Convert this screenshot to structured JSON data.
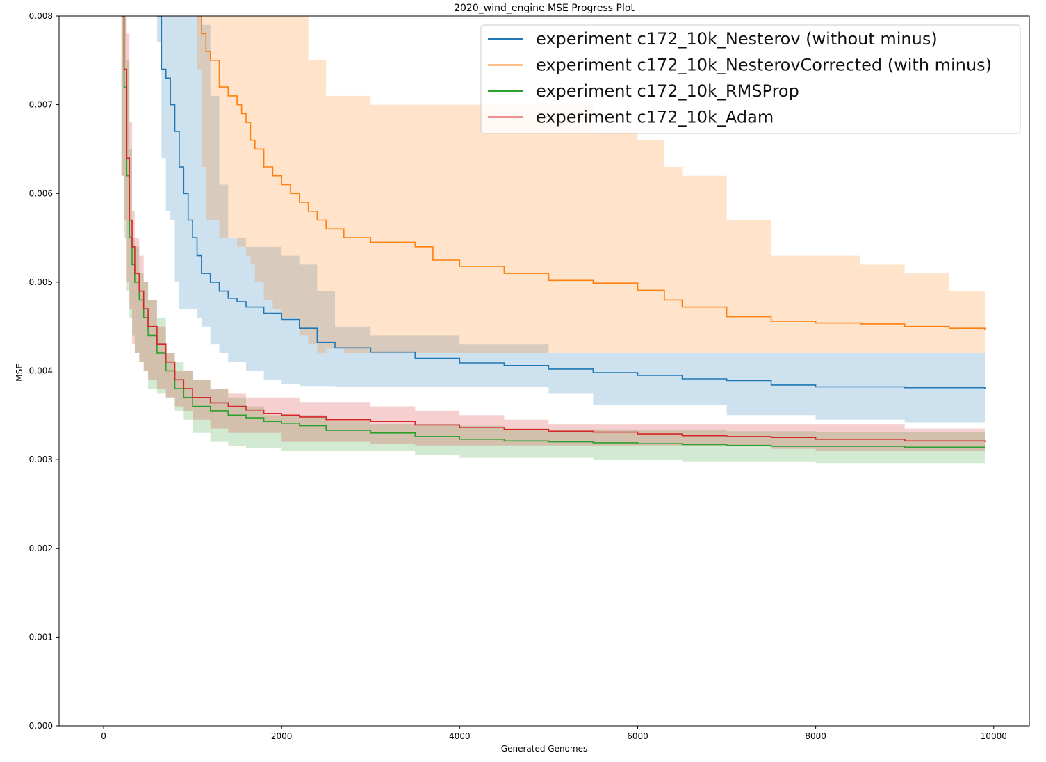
{
  "chart_data": {
    "type": "line",
    "title": "2020_wind_engine MSE Progress Plot",
    "xlabel": "Generated Genomes",
    "ylabel": "MSE",
    "xlim": [
      -500,
      10400
    ],
    "ylim": [
      0,
      0.008
    ],
    "xticks": [
      0,
      2000,
      4000,
      6000,
      8000,
      10000
    ],
    "xtick_labels": [
      "0",
      "2000",
      "4000",
      "6000",
      "8000",
      "10000"
    ],
    "yticks": [
      0,
      0.001,
      0.002,
      0.003,
      0.004,
      0.005,
      0.006,
      0.007,
      0.008
    ],
    "ytick_labels": [
      "0.000",
      "0.001",
      "0.002",
      "0.003",
      "0.004",
      "0.005",
      "0.006",
      "0.007",
      "0.008"
    ],
    "grid": false,
    "legend_position": "top-right",
    "series": [
      {
        "name": "experiment c172_10k_Nesterov (without minus)",
        "color": "#1f77b4",
        "x": [
          600,
          650,
          700,
          750,
          800,
          850,
          900,
          950,
          1000,
          1050,
          1100,
          1200,
          1300,
          1400,
          1500,
          1600,
          1800,
          2000,
          2200,
          2400,
          2600,
          3000,
          3500,
          4000,
          4500,
          5000,
          5500,
          6000,
          6500,
          7000,
          7500,
          8000,
          9000,
          9900
        ],
        "y": [
          0.008,
          0.0074,
          0.0073,
          0.007,
          0.0067,
          0.0063,
          0.006,
          0.0057,
          0.0055,
          0.0053,
          0.0051,
          0.005,
          0.0049,
          0.00482,
          0.00478,
          0.00472,
          0.00465,
          0.00458,
          0.00448,
          0.00432,
          0.00426,
          0.00421,
          0.00414,
          0.00409,
          0.00406,
          0.00402,
          0.00398,
          0.00395,
          0.00391,
          0.00389,
          0.00384,
          0.00382,
          0.00381,
          0.0038
        ],
        "lower": [
          0.008,
          0.0077,
          0.0064,
          0.0058,
          0.0057,
          0.005,
          0.0047,
          0.0047,
          0.0047,
          0.0047,
          0.0046,
          0.0045,
          0.0043,
          0.0042,
          0.0041,
          0.0041,
          0.004,
          0.0039,
          0.00385,
          0.00383,
          0.00383,
          0.00382,
          0.00382,
          0.00382,
          0.00382,
          0.00382,
          0.00375,
          0.00362,
          0.00362,
          0.00362,
          0.0035,
          0.0035,
          0.00345,
          0.00342
        ],
        "upper": [
          0.008,
          0.008,
          0.008,
          0.008,
          0.008,
          0.008,
          0.008,
          0.008,
          0.008,
          0.008,
          0.0079,
          0.0071,
          0.0061,
          0.0055,
          0.0055,
          0.0054,
          0.0054,
          0.0053,
          0.0052,
          0.0049,
          0.0045,
          0.0044,
          0.0044,
          0.0043,
          0.0043,
          0.0042,
          0.0042,
          0.0042,
          0.0042,
          0.0042,
          0.0042,
          0.0042,
          0.0042,
          0.0042
        ]
      },
      {
        "name": "experiment c172_10k_NesterovCorrected (with minus)",
        "color": "#ff7f0e",
        "x": [
          1050,
          1100,
          1150,
          1200,
          1300,
          1400,
          1500,
          1550,
          1600,
          1650,
          1700,
          1800,
          1900,
          2000,
          2100,
          2200,
          2300,
          2400,
          2500,
          2700,
          3000,
          3500,
          3700,
          4000,
          4500,
          5000,
          5500,
          6000,
          6300,
          6500,
          7000,
          7500,
          8000,
          8500,
          9000,
          9500,
          9900
        ],
        "y": [
          0.008,
          0.0078,
          0.0076,
          0.0075,
          0.0072,
          0.0071,
          0.007,
          0.0069,
          0.0068,
          0.0066,
          0.0065,
          0.0063,
          0.0062,
          0.0061,
          0.006,
          0.0059,
          0.0058,
          0.0057,
          0.0056,
          0.0055,
          0.00545,
          0.0054,
          0.00525,
          0.00518,
          0.0051,
          0.00502,
          0.00499,
          0.00491,
          0.0048,
          0.00472,
          0.00461,
          0.00456,
          0.00454,
          0.00453,
          0.0045,
          0.00448,
          0.00446
        ],
        "lower": [
          0.008,
          0.0074,
          0.0063,
          0.0057,
          0.0057,
          0.0055,
          0.0055,
          0.0054,
          0.0054,
          0.0053,
          0.0052,
          0.005,
          0.0048,
          0.0047,
          0.0046,
          0.0046,
          0.0044,
          0.0043,
          0.0042,
          0.00425,
          0.0042,
          0.0042,
          0.0042,
          0.0042,
          0.0042,
          0.0042,
          0.0042,
          0.0042,
          0.0042,
          0.0042,
          0.0042,
          0.0042,
          0.0042,
          0.0042,
          0.0042,
          0.0042,
          0.0042
        ],
        "upper": [
          0.008,
          0.008,
          0.008,
          0.008,
          0.008,
          0.008,
          0.008,
          0.008,
          0.008,
          0.008,
          0.008,
          0.008,
          0.008,
          0.008,
          0.008,
          0.008,
          0.0075,
          0.0075,
          0.0071,
          0.0071,
          0.007,
          0.007,
          0.007,
          0.007,
          0.007,
          0.007,
          0.0067,
          0.0066,
          0.0063,
          0.0062,
          0.0057,
          0.0053,
          0.0053,
          0.0052,
          0.0051,
          0.0049,
          0.0049
        ]
      },
      {
        "name": "experiment c172_10k_RMSProp",
        "color": "#2ca02c",
        "x": [
          200,
          230,
          260,
          290,
          320,
          350,
          400,
          450,
          500,
          600,
          700,
          800,
          900,
          1000,
          1200,
          1400,
          1600,
          1800,
          2000,
          2200,
          2500,
          3000,
          3500,
          4000,
          4500,
          5000,
          5500,
          6000,
          6500,
          7000,
          7500,
          8000,
          9000,
          9900
        ],
        "y": [
          0.008,
          0.0072,
          0.0062,
          0.0055,
          0.0052,
          0.005,
          0.0048,
          0.0046,
          0.0044,
          0.0042,
          0.004,
          0.0038,
          0.0037,
          0.0036,
          0.00355,
          0.0035,
          0.00347,
          0.00343,
          0.00341,
          0.00338,
          0.00333,
          0.0033,
          0.00326,
          0.00323,
          0.00321,
          0.0032,
          0.00319,
          0.00318,
          0.00317,
          0.00316,
          0.00315,
          0.00315,
          0.00314,
          0.00314
        ],
        "lower": [
          0.0066,
          0.0062,
          0.0055,
          0.0049,
          0.0046,
          0.0044,
          0.0042,
          0.0041,
          0.004,
          0.0038,
          0.00375,
          0.0037,
          0.00355,
          0.00345,
          0.0033,
          0.0032,
          0.00315,
          0.00313,
          0.00313,
          0.0031,
          0.0031,
          0.0031,
          0.0031,
          0.00305,
          0.00302,
          0.00302,
          0.00302,
          0.003,
          0.003,
          0.00298,
          0.00298,
          0.00298,
          0.00296,
          0.00296
        ],
        "upper": [
          0.008,
          0.008,
          0.0075,
          0.0065,
          0.0055,
          0.0054,
          0.0051,
          0.005,
          0.0048,
          0.0046,
          0.0042,
          0.0041,
          0.004,
          0.0039,
          0.0038,
          0.0037,
          0.0036,
          0.0035,
          0.0035,
          0.0035,
          0.00343,
          0.0034,
          0.0034,
          0.00338,
          0.00334,
          0.00334,
          0.00334,
          0.00333,
          0.00333,
          0.00332,
          0.00332,
          0.00331,
          0.00331,
          0.00331
        ]
      },
      {
        "name": "experiment c172_10k_Adam",
        "color": "#d62728",
        "x": [
          200,
          230,
          260,
          290,
          320,
          350,
          400,
          450,
          500,
          600,
          700,
          800,
          900,
          1000,
          1200,
          1400,
          1600,
          1800,
          2000,
          2200,
          2500,
          3000,
          3500,
          4000,
          4500,
          5000,
          5500,
          6000,
          6500,
          7000,
          7500,
          8000,
          9000,
          9900
        ],
        "y": [
          0.008,
          0.0074,
          0.0064,
          0.0057,
          0.0054,
          0.0051,
          0.0049,
          0.0047,
          0.0045,
          0.0043,
          0.0041,
          0.0039,
          0.0038,
          0.0037,
          0.00364,
          0.0036,
          0.00356,
          0.00352,
          0.0035,
          0.00348,
          0.00345,
          0.00343,
          0.00339,
          0.00336,
          0.00334,
          0.00332,
          0.00331,
          0.00329,
          0.00327,
          0.00326,
          0.00325,
          0.00323,
          0.00321,
          0.0032
        ],
        "lower": [
          0.0067,
          0.0062,
          0.0057,
          0.005,
          0.0047,
          0.0043,
          0.0042,
          0.0041,
          0.004,
          0.0039,
          0.0038,
          0.0037,
          0.0036,
          0.00355,
          0.00345,
          0.00335,
          0.0033,
          0.0033,
          0.0033,
          0.0032,
          0.0032,
          0.0032,
          0.00318,
          0.00316,
          0.00316,
          0.00316,
          0.00316,
          0.00316,
          0.00316,
          0.00316,
          0.00316,
          0.00312,
          0.0031,
          0.0031
        ],
        "upper": [
          0.008,
          0.008,
          0.0078,
          0.0068,
          0.0058,
          0.0055,
          0.0053,
          0.005,
          0.0048,
          0.0045,
          0.0042,
          0.004,
          0.004,
          0.0039,
          0.0038,
          0.00375,
          0.0037,
          0.0037,
          0.0037,
          0.00365,
          0.00365,
          0.0036,
          0.00355,
          0.0035,
          0.00345,
          0.0034,
          0.0034,
          0.0034,
          0.0034,
          0.0034,
          0.0034,
          0.0034,
          0.00335,
          0.0033
        ]
      }
    ]
  }
}
